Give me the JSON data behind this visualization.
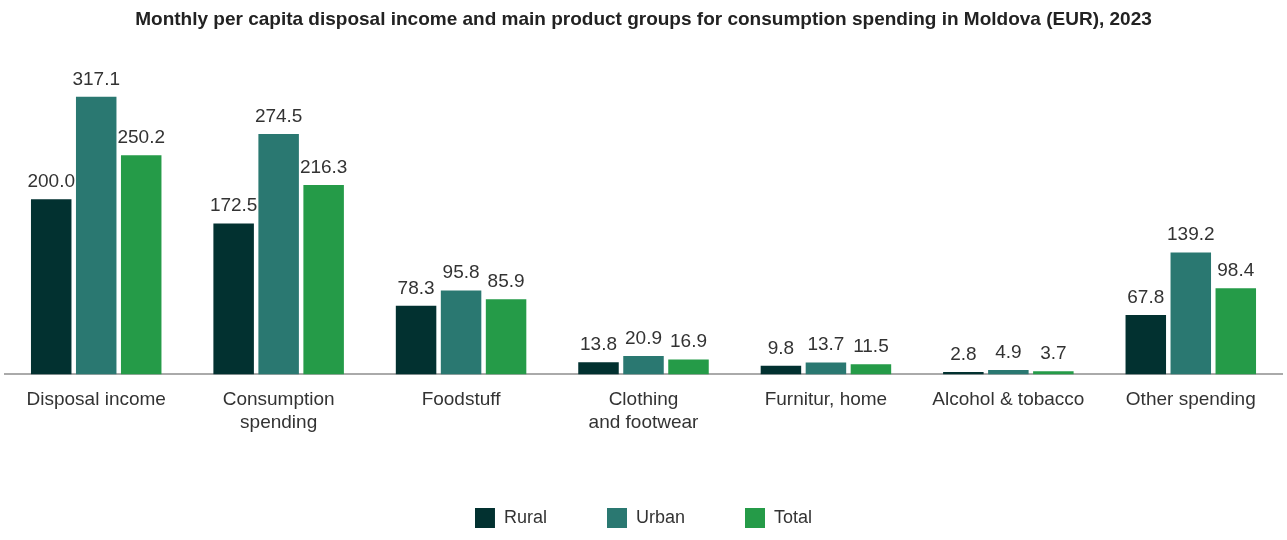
{
  "chart_data": {
    "type": "bar",
    "title": "Monthly per capita disposal income and main product groups for consumption spending in Moldova (EUR), 2023",
    "categories": [
      "Disposal income",
      "Consumption spending",
      "Foodstuff",
      "Clothing and footwear",
      "Furnitur, home",
      "Alcohol & tobacco",
      "Other spending"
    ],
    "series": [
      {
        "name": "Rural",
        "color": "#023130",
        "values": [
          200.0,
          172.5,
          78.3,
          13.8,
          9.8,
          2.8,
          67.8
        ],
        "value_labels": [
          "200.0",
          "172.5",
          "78.3",
          "13.8",
          "9.8",
          "2.8",
          "67.8"
        ]
      },
      {
        "name": "Urban",
        "color": "#2a7871",
        "values": [
          317.1,
          274.5,
          95.8,
          20.9,
          13.7,
          4.9,
          139.2
        ],
        "value_labels": [
          "317.1",
          "274.5",
          "95.8",
          "20.9",
          "13.7",
          "4.9",
          "139.2"
        ]
      },
      {
        "name": "Total",
        "color": "#259b48",
        "values": [
          250.2,
          216.3,
          85.9,
          16.9,
          11.5,
          3.7,
          98.4
        ],
        "value_labels": [
          "250.2",
          "216.3",
          "85.9",
          "16.9",
          "11.5",
          "3.7",
          "98.4"
        ]
      }
    ],
    "legend": "bottom",
    "grid": false
  }
}
